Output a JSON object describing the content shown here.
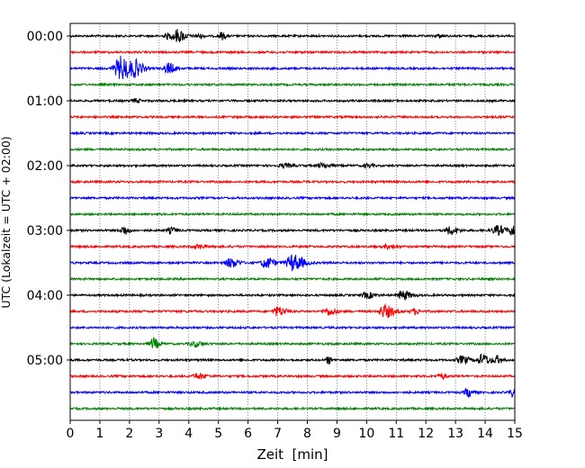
{
  "chart_data": {
    "type": "line",
    "subtype": "helicorder",
    "title": "",
    "xlabel": "Zeit  [min]",
    "ylabel": "UTC (Lokalzeit = UTC + 02:00)",
    "xlim": [
      0,
      15
    ],
    "xticks": [
      "0",
      "1",
      "2",
      "3",
      "4",
      "5",
      "6",
      "7",
      "8",
      "9",
      "10",
      "11",
      "12",
      "13",
      "14",
      "15"
    ],
    "yticks": [
      "00:00",
      "01:00",
      "02:00",
      "03:00",
      "04:00",
      "05:00"
    ],
    "grid": "vertical dotted at each minute",
    "minutes_per_line": 15,
    "line_count": 24,
    "line_colors": [
      "#000000",
      "#ff0000",
      "#0000ff",
      "#008000"
    ],
    "events": [
      {
        "line": 0,
        "minute": 3.6,
        "amp": 7,
        "width": 0.3
      },
      {
        "line": 0,
        "minute": 3.25,
        "amp": 3,
        "width": 0.15
      },
      {
        "line": 0,
        "minute": 4.3,
        "amp": 2,
        "width": 0.2
      },
      {
        "line": 0,
        "minute": 5.1,
        "amp": 4,
        "width": 0.15
      },
      {
        "line": 0,
        "minute": 12.4,
        "amp": 1.5,
        "width": 0.2
      },
      {
        "line": 2,
        "minute": 1.7,
        "amp": 13,
        "width": 0.4
      },
      {
        "line": 2,
        "minute": 2.2,
        "amp": 7,
        "width": 0.3
      },
      {
        "line": 2,
        "minute": 3.3,
        "amp": 6,
        "width": 0.25
      },
      {
        "line": 4,
        "minute": 2.2,
        "amp": 2,
        "width": 0.2
      },
      {
        "line": 8,
        "minute": 7.2,
        "amp": 2,
        "width": 0.3
      },
      {
        "line": 8,
        "minute": 8.5,
        "amp": 2.5,
        "width": 0.3
      },
      {
        "line": 8,
        "minute": 10.0,
        "amp": 2,
        "width": 0.2
      },
      {
        "line": 12,
        "minute": 1.8,
        "amp": 5,
        "width": 0.2
      },
      {
        "line": 12,
        "minute": 3.4,
        "amp": 3,
        "width": 0.2
      },
      {
        "line": 12,
        "minute": 12.8,
        "amp": 4,
        "width": 0.3
      },
      {
        "line": 12,
        "minute": 14.4,
        "amp": 5,
        "width": 0.3
      },
      {
        "line": 12,
        "minute": 14.9,
        "amp": 7,
        "width": 0.15
      },
      {
        "line": 13,
        "minute": 4.3,
        "amp": 2,
        "width": 0.3
      },
      {
        "line": 13,
        "minute": 10.7,
        "amp": 2,
        "width": 0.3
      },
      {
        "line": 14,
        "minute": 5.4,
        "amp": 5,
        "width": 0.3
      },
      {
        "line": 14,
        "minute": 6.6,
        "amp": 6,
        "width": 0.3
      },
      {
        "line": 14,
        "minute": 7.5,
        "amp": 9,
        "width": 0.4
      },
      {
        "line": 16,
        "minute": 10.0,
        "amp": 3,
        "width": 0.3
      },
      {
        "line": 16,
        "minute": 11.2,
        "amp": 5,
        "width": 0.3
      },
      {
        "line": 17,
        "minute": 7.0,
        "amp": 5,
        "width": 0.3
      },
      {
        "line": 17,
        "minute": 8.7,
        "amp": 4,
        "width": 0.3
      },
      {
        "line": 17,
        "minute": 10.6,
        "amp": 7,
        "width": 0.35
      },
      {
        "line": 17,
        "minute": 11.6,
        "amp": 3,
        "width": 0.2
      },
      {
        "line": 19,
        "minute": 2.8,
        "amp": 6,
        "width": 0.2
      },
      {
        "line": 19,
        "minute": 4.2,
        "amp": 3,
        "width": 0.3
      },
      {
        "line": 20,
        "minute": 8.7,
        "amp": 5,
        "width": 0.1
      },
      {
        "line": 20,
        "minute": 13.2,
        "amp": 4,
        "width": 0.3
      },
      {
        "line": 20,
        "minute": 13.9,
        "amp": 6,
        "width": 0.3
      },
      {
        "line": 20,
        "minute": 14.4,
        "amp": 4,
        "width": 0.2
      },
      {
        "line": 21,
        "minute": 4.3,
        "amp": 3,
        "width": 0.3
      },
      {
        "line": 21,
        "minute": 12.5,
        "amp": 3,
        "width": 0.2
      },
      {
        "line": 22,
        "minute": 13.4,
        "amp": 5,
        "width": 0.2
      },
      {
        "line": 22,
        "minute": 14.9,
        "amp": 4,
        "width": 0.15
      }
    ]
  }
}
